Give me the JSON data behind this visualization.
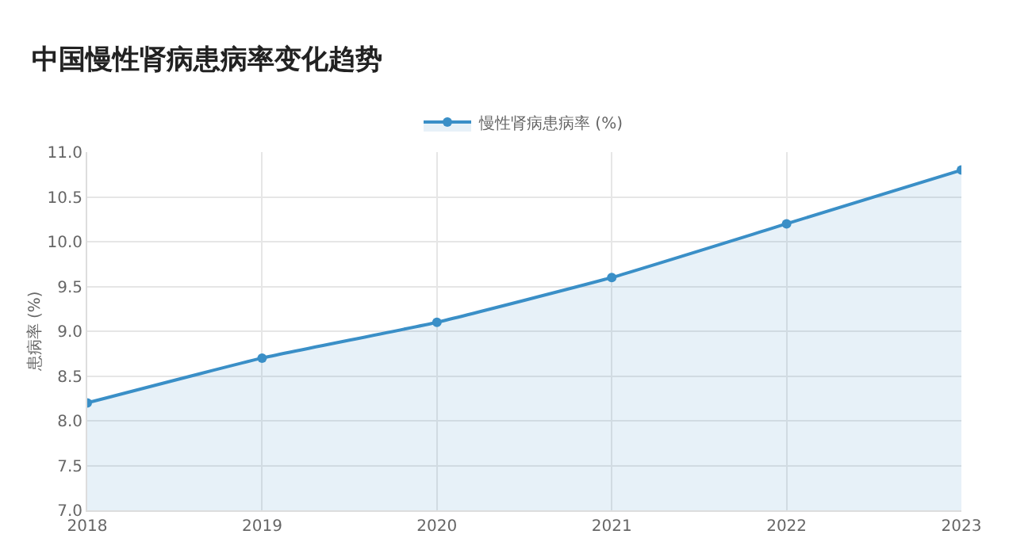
{
  "chart_data": {
    "type": "area",
    "title": "中国慢性肾病患病率变化趋势",
    "ylabel": "患病率 (%)",
    "categories": [
      "2018",
      "2019",
      "2020",
      "2021",
      "2022",
      "2023"
    ],
    "series": [
      {
        "name": "慢性肾病患病率 (%)",
        "color": "#3a8fc7",
        "values": [
          8.2,
          8.7,
          9.1,
          9.6,
          10.2,
          10.8
        ]
      }
    ],
    "ylim": [
      7.0,
      11.0
    ],
    "yticks": [
      {
        "value": 7,
        "label": "7.0"
      },
      {
        "value": 7.5,
        "label": "7.5"
      },
      {
        "value": 8,
        "label": "8.0"
      },
      {
        "value": 8.5,
        "label": "8.5"
      },
      {
        "value": 9,
        "label": "9.0"
      },
      {
        "value": 9.5,
        "label": "9.5"
      },
      {
        "value": 10,
        "label": "10.0"
      },
      {
        "value": 10.5,
        "label": "10.5"
      },
      {
        "value": 11,
        "label": "11.0"
      }
    ],
    "grid": true,
    "legend": "top",
    "marker": "circle",
    "line_style": "solid"
  }
}
